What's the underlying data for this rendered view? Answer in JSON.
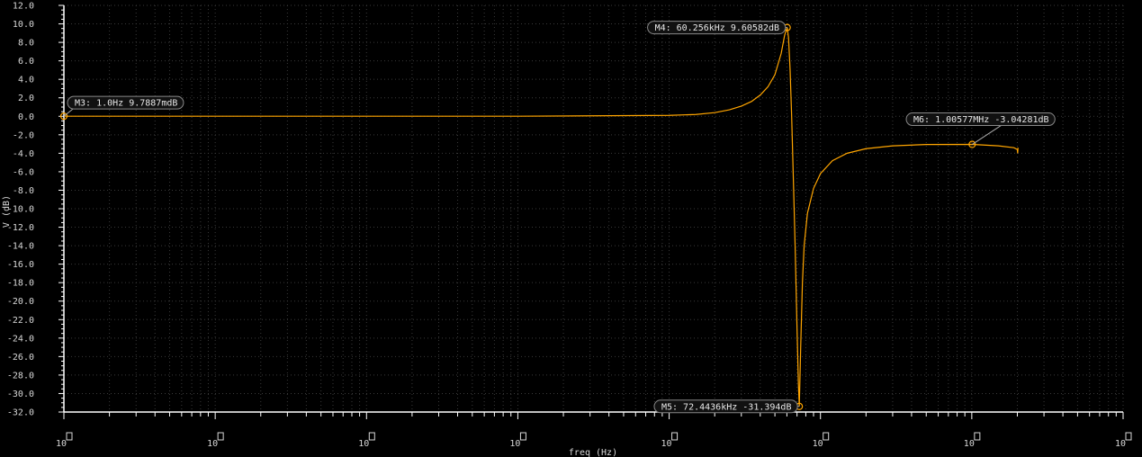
{
  "chart_data": {
    "type": "line",
    "xlabel": "freq (Hz)",
    "ylabel": "V (dB)",
    "xscale": "log",
    "xlim": [
      1,
      10000000
    ],
    "ylim": [
      -32,
      12
    ],
    "grid": true,
    "colors": {
      "background": "#000000",
      "grid": "#3a3a3a",
      "axis": "#ffffff",
      "trace": "#ffa500",
      "text": "#d8d8d8"
    },
    "y_ticks": [
      "12.0",
      "10.0",
      "8.0",
      "6.0",
      "4.0",
      "2.0",
      "0.0",
      "-2.0",
      "-4.0",
      "-6.0",
      "-8.0",
      "-10.0",
      "-12.0",
      "-14.0",
      "-16.0",
      "-18.0",
      "-20.0",
      "-22.0",
      "-24.0",
      "-26.0",
      "-28.0",
      "-30.0",
      "-32.0"
    ],
    "x_ticks": [
      {
        "base": "10",
        "exp": "0"
      },
      {
        "base": "10",
        "exp": "1"
      },
      {
        "base": "10",
        "exp": "2"
      },
      {
        "base": "10",
        "exp": "3"
      },
      {
        "base": "10",
        "exp": "4"
      },
      {
        "base": "10",
        "exp": "5"
      },
      {
        "base": "10",
        "exp": "6"
      },
      {
        "base": "10",
        "exp": "7"
      }
    ],
    "series": [
      {
        "points": [
          [
            1,
            0.0098
          ],
          [
            100,
            0.0099
          ],
          [
            1000,
            0.01
          ],
          [
            10000,
            0.1
          ],
          [
            15000,
            0.2
          ],
          [
            20000,
            0.4
          ],
          [
            25000,
            0.7
          ],
          [
            30000,
            1.1
          ],
          [
            35000,
            1.6
          ],
          [
            40000,
            2.3
          ],
          [
            45000,
            3.2
          ],
          [
            50000,
            4.5
          ],
          [
            55000,
            6.8
          ],
          [
            58000,
            8.8
          ],
          [
            60256,
            9.606
          ],
          [
            61500,
            8.5
          ],
          [
            63000,
            5.0
          ],
          [
            64500,
            0.0
          ],
          [
            66000,
            -6.0
          ],
          [
            68000,
            -14.0
          ],
          [
            70000,
            -23.0
          ],
          [
            71500,
            -29.0
          ],
          [
            72443.6,
            -31.394
          ],
          [
            74000,
            -25.0
          ],
          [
            76000,
            -18.0
          ],
          [
            78000,
            -14.0
          ],
          [
            82000,
            -10.5
          ],
          [
            90000,
            -7.8
          ],
          [
            100000,
            -6.2
          ],
          [
            120000,
            -4.8
          ],
          [
            150000,
            -4.0
          ],
          [
            200000,
            -3.5
          ],
          [
            300000,
            -3.2
          ],
          [
            500000,
            -3.05
          ],
          [
            1005770,
            -3.0428
          ],
          [
            1500000,
            -3.2
          ],
          [
            1900000,
            -3.4
          ],
          [
            2000000,
            -3.6
          ],
          [
            2010000,
            -4.0
          ],
          [
            2020000,
            -3.4
          ]
        ]
      }
    ],
    "markers": [
      {
        "label": "M3: 1.0Hz 9.7887mdB",
        "x": 1,
        "y": 0.0098,
        "side": "right"
      },
      {
        "label": "M4: 60.256kHz 9.60582dB",
        "x": 60256,
        "y": 9.606,
        "side": "left"
      },
      {
        "label": "M5: 72.4436kHz -31.394dB",
        "x": 72443.6,
        "y": -31.394,
        "side": "left"
      },
      {
        "label": "M6: 1.00577MHz -3.04281dB",
        "x": 1005770,
        "y": -3.0428,
        "side": "above"
      }
    ]
  }
}
